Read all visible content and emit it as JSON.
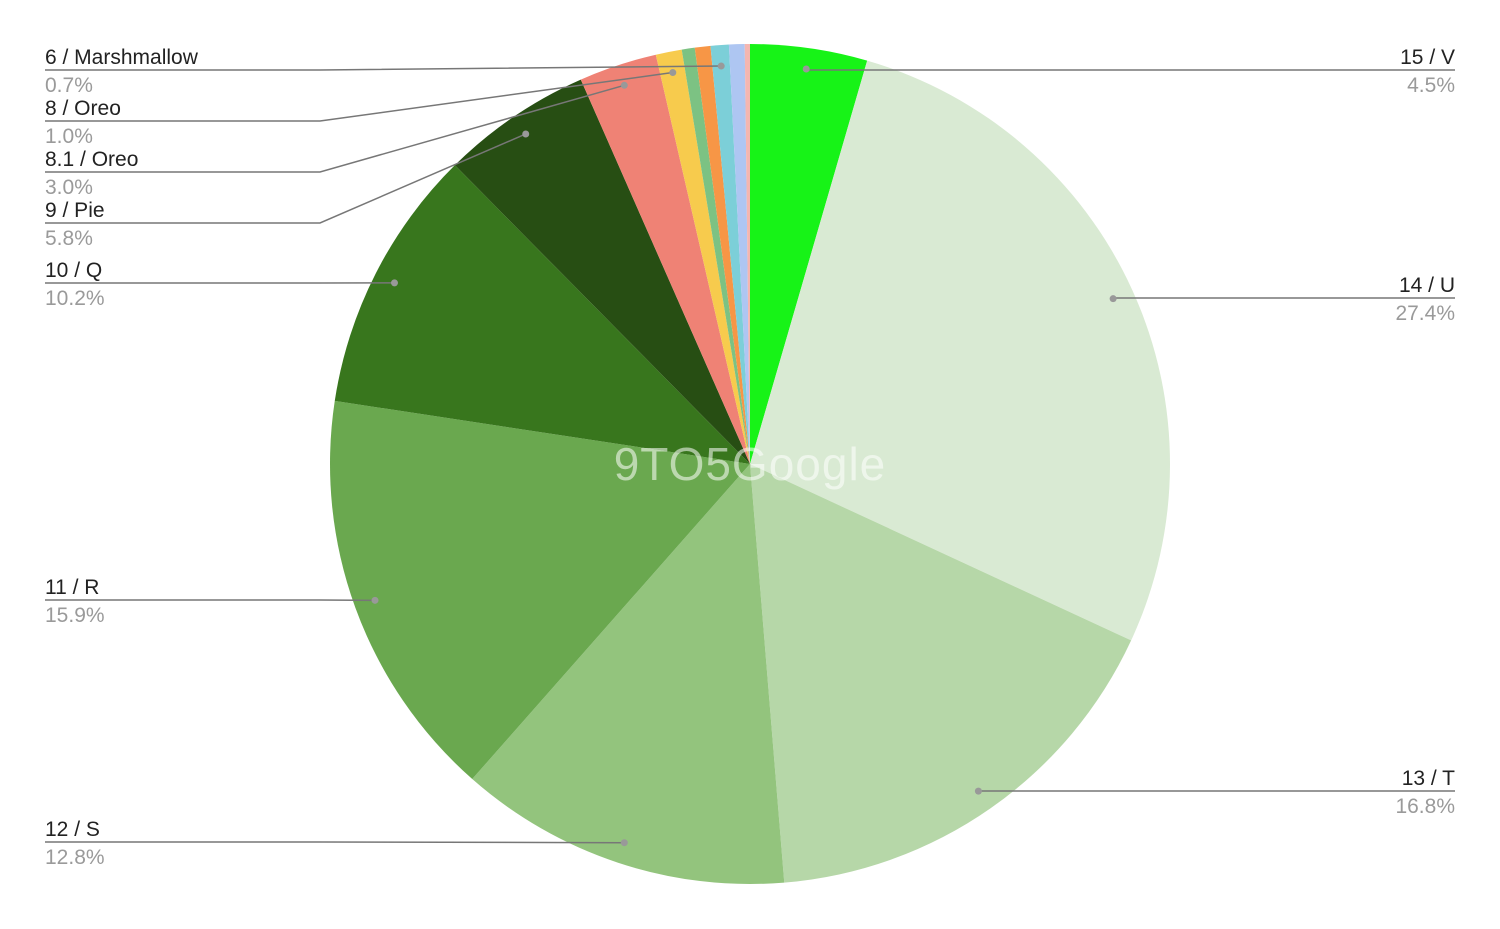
{
  "chart_data": {
    "type": "pie",
    "title": "",
    "start": "top",
    "direction": "clockwise",
    "legend": "labels with leader lines",
    "watermark": "9TO5Google",
    "slices": [
      {
        "label": "15 / V",
        "pct_label": "4.5%",
        "value": 4.5,
        "color": "#17f317"
      },
      {
        "label": "14 / U",
        "pct_label": "27.4%",
        "value": 27.4,
        "color": "#d9ead3"
      },
      {
        "label": "13 / T",
        "pct_label": "16.8%",
        "value": 16.8,
        "color": "#b6d7a8"
      },
      {
        "label": "12 / S",
        "pct_label": "12.8%",
        "value": 12.8,
        "color": "#93c47d"
      },
      {
        "label": "11 / R",
        "pct_label": "15.9%",
        "value": 15.9,
        "color": "#6aa84f"
      },
      {
        "label": "10 / Q",
        "pct_label": "10.2%",
        "value": 10.2,
        "color": "#38761d"
      },
      {
        "label": "9 / Pie",
        "pct_label": "5.8%",
        "value": 5.8,
        "color": "#274e13"
      },
      {
        "label": "8.1 / Oreo",
        "pct_label": "3.0%",
        "value": 3.0,
        "color": "#ef8275"
      },
      {
        "label": "8 / Oreo",
        "pct_label": "1.0%",
        "value": 1.0,
        "color": "#f7cb4d"
      },
      {
        "label": "",
        "pct_label": "",
        "value": 0.5,
        "color": "#7cc283"
      },
      {
        "label": "",
        "pct_label": "",
        "value": 0.6,
        "color": "#f79646"
      },
      {
        "label": "6 / Marshmallow",
        "pct_label": "0.7%",
        "value": 0.7,
        "color": "#7ccfd8"
      },
      {
        "label": "",
        "pct_label": "",
        "value": 0.6,
        "color": "#aec6f2"
      },
      {
        "label": "",
        "pct_label": "",
        "value": 0.2,
        "color": "#f4b6b0"
      }
    ]
  }
}
